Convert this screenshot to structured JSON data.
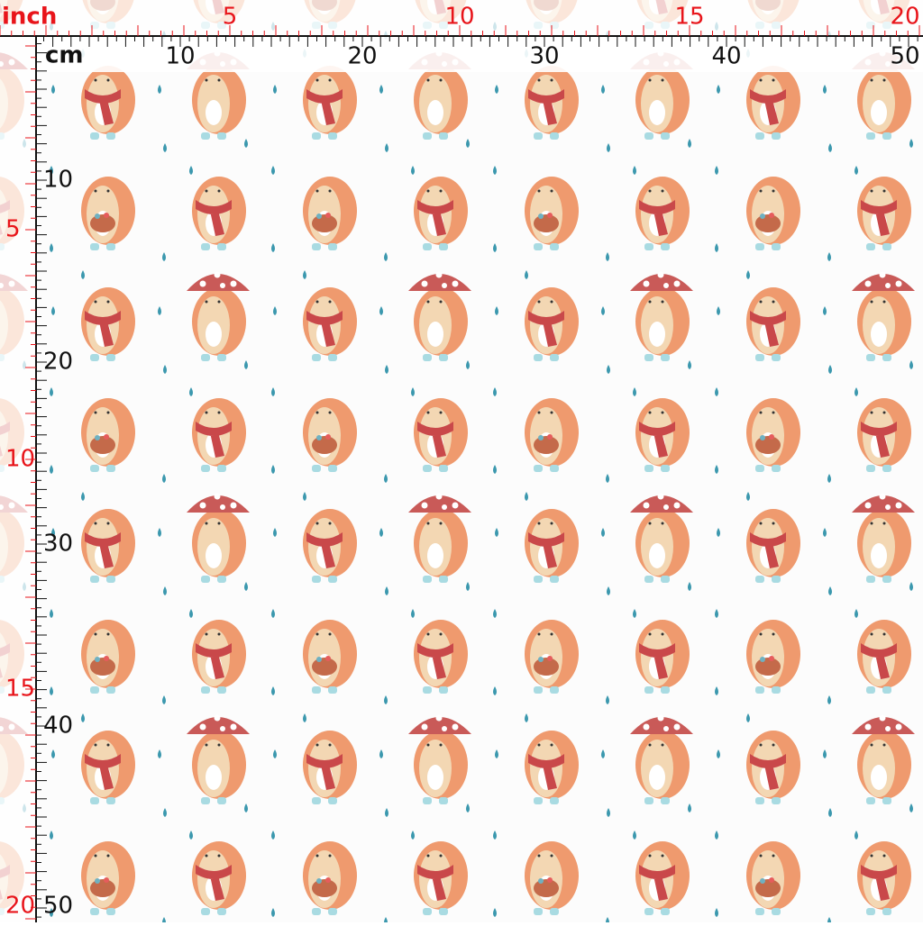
{
  "rulers": {
    "top": {
      "inch_unit": "inch",
      "cm_unit": "cm",
      "inch_labels": [
        5,
        10,
        15,
        20
      ],
      "cm_labels": [
        10,
        20,
        30,
        40,
        50
      ]
    },
    "left": {
      "cm_labels": [
        10,
        20,
        30,
        40,
        50
      ],
      "inch_labels": [
        5,
        10,
        15,
        20
      ]
    }
  }
}
